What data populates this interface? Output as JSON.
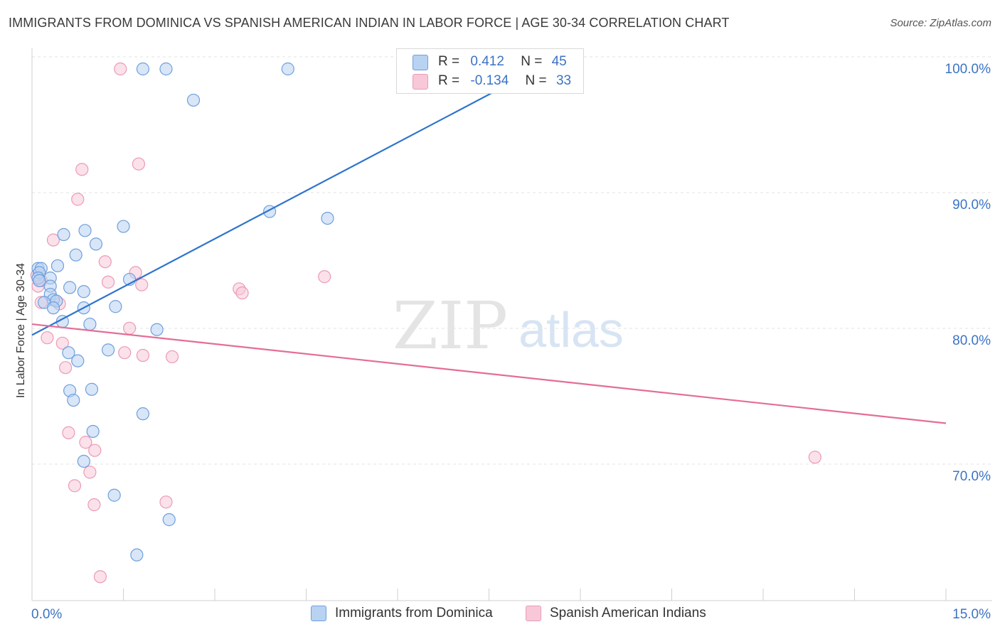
{
  "header": {
    "title": "IMMIGRANTS FROM DOMINICA VS SPANISH AMERICAN INDIAN IN LABOR FORCE | AGE 30-34 CORRELATION CHART",
    "source": "Source: ZipAtlas.com"
  },
  "watermark": {
    "zip": "ZIP",
    "atlas": "atlas"
  },
  "legend": {
    "r_label": "R =",
    "n_label": "N =",
    "blue": {
      "r": "0.412",
      "n": "45"
    },
    "pink": {
      "r": "-0.134",
      "n": "33"
    }
  },
  "colors": {
    "blue_fill": "#b8d2f2",
    "blue_stroke": "#6f9fdc",
    "blue_line": "#2e74cc",
    "pink_fill": "#f8c8d8",
    "pink_stroke": "#ec9ab6",
    "pink_line": "#e46d97",
    "tick_label": "#3b73c4"
  },
  "chart_data": {
    "type": "scatter",
    "title": "IMMIGRANTS FROM DOMINICA VS SPANISH AMERICAN INDIAN IN LABOR FORCE | AGE 30-34 CORRELATION CHART",
    "xlabel": "",
    "ylabel": "In Labor Force | Age 30-34",
    "xlim": [
      0,
      15
    ],
    "ylim": [
      60.5,
      101
    ],
    "x_tick_labels": [
      "0.0%",
      "15.0%"
    ],
    "y_ticks": [
      70,
      80,
      90,
      100
    ],
    "y_tick_labels": [
      "70.0%",
      "80.0%",
      "90.0%",
      "100.0%"
    ],
    "grid": true,
    "legend_position": "top-center",
    "series": [
      {
        "name": "Immigrants from Dominica",
        "points": [
          [
            1.82,
            100.0
          ],
          [
            2.2,
            100.0
          ],
          [
            4.2,
            100.0
          ],
          [
            7.8,
            100.0
          ],
          [
            2.65,
            97.7
          ],
          [
            3.9,
            89.5
          ],
          [
            4.85,
            89.0
          ],
          [
            1.5,
            88.4
          ],
          [
            0.87,
            88.1
          ],
          [
            0.52,
            87.8
          ],
          [
            1.05,
            87.1
          ],
          [
            0.72,
            86.3
          ],
          [
            0.42,
            85.5
          ],
          [
            0.1,
            85.3
          ],
          [
            0.15,
            85.3
          ],
          [
            0.12,
            85.0
          ],
          [
            0.3,
            84.6
          ],
          [
            0.1,
            84.6
          ],
          [
            0.12,
            84.4
          ],
          [
            1.6,
            84.5
          ],
          [
            0.3,
            84.0
          ],
          [
            0.62,
            83.9
          ],
          [
            0.85,
            83.6
          ],
          [
            0.3,
            83.4
          ],
          [
            0.35,
            83.0
          ],
          [
            0.4,
            82.9
          ],
          [
            0.2,
            82.8
          ],
          [
            0.35,
            82.4
          ],
          [
            0.85,
            82.4
          ],
          [
            1.37,
            82.5
          ],
          [
            0.5,
            81.4
          ],
          [
            0.95,
            81.2
          ],
          [
            2.05,
            80.8
          ],
          [
            0.6,
            79.1
          ],
          [
            1.25,
            79.3
          ],
          [
            0.75,
            78.5
          ],
          [
            0.62,
            76.3
          ],
          [
            0.98,
            76.4
          ],
          [
            0.68,
            75.6
          ],
          [
            1.82,
            74.6
          ],
          [
            1.0,
            73.3
          ],
          [
            0.85,
            71.1
          ],
          [
            1.35,
            68.6
          ],
          [
            2.25,
            66.8
          ],
          [
            1.72,
            64.2
          ]
        ]
      },
      {
        "name": "Spanish American Indians",
        "points": [
          [
            1.45,
            100.0
          ],
          [
            1.75,
            93.0
          ],
          [
            0.82,
            92.6
          ],
          [
            0.75,
            90.4
          ],
          [
            0.35,
            87.4
          ],
          [
            1.2,
            85.8
          ],
          [
            1.7,
            85.0
          ],
          [
            1.25,
            84.3
          ],
          [
            1.8,
            84.1
          ],
          [
            3.4,
            83.8
          ],
          [
            3.45,
            83.5
          ],
          [
            4.8,
            84.7
          ],
          [
            0.1,
            84.0
          ],
          [
            0.15,
            82.8
          ],
          [
            0.45,
            82.7
          ],
          [
            1.6,
            80.9
          ],
          [
            0.25,
            80.2
          ],
          [
            0.5,
            79.8
          ],
          [
            1.52,
            79.1
          ],
          [
            1.82,
            78.9
          ],
          [
            2.3,
            78.8
          ],
          [
            0.55,
            78.0
          ],
          [
            0.6,
            73.2
          ],
          [
            0.88,
            72.5
          ],
          [
            1.03,
            71.9
          ],
          [
            0.95,
            70.3
          ],
          [
            0.7,
            69.3
          ],
          [
            2.2,
            68.1
          ],
          [
            1.02,
            67.9
          ],
          [
            1.12,
            62.6
          ],
          [
            12.85,
            71.4
          ],
          [
            0.15,
            84.4
          ],
          [
            0.08,
            84.8
          ]
        ]
      }
    ],
    "trendlines": [
      {
        "name": "Immigrants from Dominica",
        "from": [
          0.0,
          80.4
        ],
        "to": [
          8.0,
          99.3
        ]
      },
      {
        "name": "Spanish American Indians",
        "from": [
          0.0,
          81.2
        ],
        "to": [
          15.0,
          73.9
        ]
      }
    ]
  },
  "bottom_legend": {
    "items": [
      {
        "label": "Immigrants from Dominica"
      },
      {
        "label": "Spanish American Indians"
      }
    ]
  }
}
